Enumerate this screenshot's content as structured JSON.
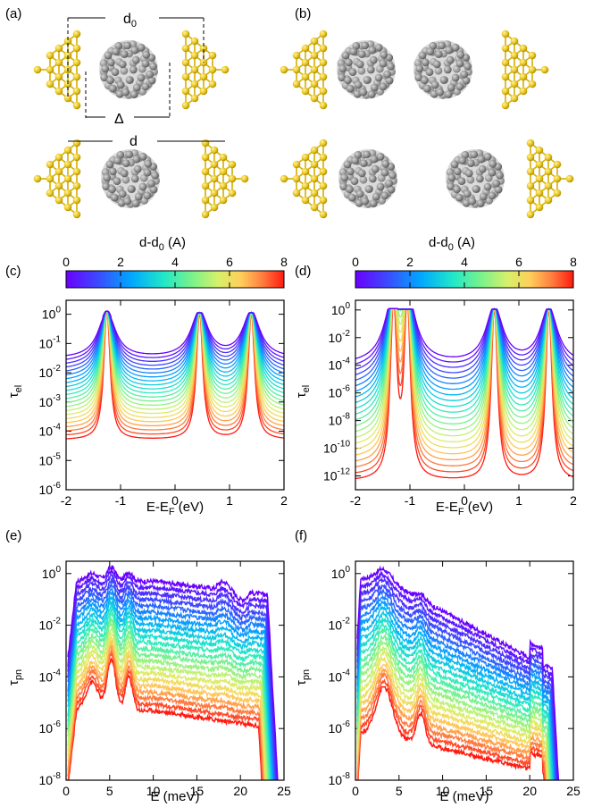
{
  "panel_labels": {
    "a": "(a)",
    "b": "(b)",
    "c": "(c)",
    "d": "(d)",
    "e": "(e)",
    "f": "(f)"
  },
  "schematic": {
    "label_d0": "d",
    "label_d0_sub": "0",
    "label_delta": "Δ",
    "label_d": "d",
    "colors": {
      "gold": "#e6c21a",
      "carbon": "#8c8c8c"
    }
  },
  "colorbar": {
    "title": "d-d",
    "title_sub": "0",
    "title_unit": " (A)",
    "ticks": [
      "0",
      "2",
      "4",
      "6",
      "8"
    ],
    "colormap": "rainbow (purple → blue → cyan → green → yellow → orange → red)"
  },
  "axes": {
    "tau_el_base": "τ",
    "tau_el_sub": "el",
    "tau_pn_base": "τ",
    "tau_pn_sub": "pn",
    "x_el_main": "E-E",
    "x_el_sub": "F",
    "x_el_unit": " (eV)",
    "x_pn": "E (meV)"
  },
  "chart_data": [
    {
      "panel": "(c)",
      "type": "line",
      "x_range": [
        -2,
        2
      ],
      "x_ticks": [
        "-2",
        "-1",
        "0",
        "1",
        "2"
      ],
      "y_scale": "log",
      "y_range": [
        1e-06,
        3
      ],
      "y_ticks": [
        {
          "base": "10",
          "exp": "0",
          "v": 0
        },
        {
          "base": "10",
          "exp": "-1",
          "v": -1
        },
        {
          "base": "10",
          "exp": "-2",
          "v": -2
        },
        {
          "base": "10",
          "exp": "-3",
          "v": -3
        },
        {
          "base": "10",
          "exp": "-4",
          "v": -4
        },
        {
          "base": "10",
          "exp": "-5",
          "v": -5
        },
        {
          "base": "10",
          "exp": "-6",
          "v": -6
        }
      ],
      "series_family": "d-d0 from 0 to 8",
      "resonances_eV": [
        -1.25,
        0.45,
        1.4
      ],
      "min_value_at_top": 0.03,
      "min_value_at_bottom": 5e-05
    },
    {
      "panel": "(d)",
      "type": "line",
      "x_range": [
        -2,
        2
      ],
      "x_ticks": [
        "-2",
        "-1",
        "0",
        "1",
        "2"
      ],
      "y_scale": "log",
      "y_range": [
        1e-13,
        5
      ],
      "y_ticks": [
        {
          "base": "10",
          "exp": "0",
          "v": 0
        },
        {
          "base": "10",
          "exp": "-2",
          "v": -2
        },
        {
          "base": "10",
          "exp": "-4",
          "v": -4
        },
        {
          "base": "10",
          "exp": "-6",
          "v": -6
        },
        {
          "base": "10",
          "exp": "-8",
          "v": -8
        },
        {
          "base": "10",
          "exp": "-10",
          "v": -10
        },
        {
          "base": "10",
          "exp": "-12",
          "v": -12
        }
      ],
      "series_family": "d-d0 from 0 to 8",
      "resonances_eV": [
        -1.3,
        -1.05,
        0.55,
        1.55
      ],
      "min_value_at_top": 0.0001,
      "min_value_at_bottom": 4e-13
    },
    {
      "panel": "(e)",
      "type": "line",
      "x_range": [
        0,
        25
      ],
      "x_ticks": [
        "0",
        "5",
        "10",
        "15",
        "20",
        "25"
      ],
      "y_scale": "log",
      "y_range": [
        1e-08,
        3
      ],
      "y_ticks": [
        {
          "base": "10",
          "exp": "0",
          "v": 0
        },
        {
          "base": "10",
          "exp": "-2",
          "v": -2
        },
        {
          "base": "10",
          "exp": "-4",
          "v": -4
        },
        {
          "base": "10",
          "exp": "-6",
          "v": -6
        },
        {
          "base": "10",
          "exp": "-8",
          "v": -8
        }
      ],
      "series_family": "d-d0 from 0 to 8",
      "cutoff_meV": 22
    },
    {
      "panel": "(f)",
      "type": "line",
      "x_range": [
        0,
        25
      ],
      "x_ticks": [
        "0",
        "5",
        "10",
        "15",
        "20",
        "25"
      ],
      "y_scale": "log",
      "y_range": [
        1e-08,
        3
      ],
      "y_ticks": [
        {
          "base": "10",
          "exp": "0",
          "v": 0
        },
        {
          "base": "10",
          "exp": "-2",
          "v": -2
        },
        {
          "base": "10",
          "exp": "-4",
          "v": -4
        },
        {
          "base": "10",
          "exp": "-6",
          "v": -6
        },
        {
          "base": "10",
          "exp": "-8",
          "v": -8
        }
      ],
      "series_family": "d-d0 from 0 to 8",
      "cutoff_meV": 21.5
    }
  ]
}
